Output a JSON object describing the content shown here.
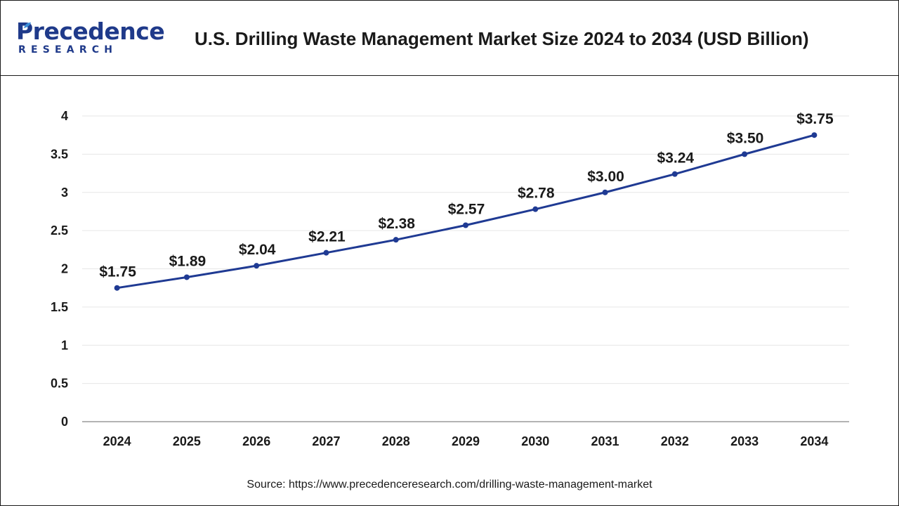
{
  "header": {
    "logo_name": "Precedence",
    "logo_sub": "RESEARCH",
    "title": "U.S. Drilling Waste Management Market Size 2024 to 2034 (USD Billion)"
  },
  "source": "Source: https://www.precedenceresearch.com/drilling-waste-management-market",
  "colors": {
    "line": "#1f3a93",
    "brand": "#1f3a8a",
    "grid": "#e6e6e6",
    "axis": "#9a9a9a"
  },
  "chart_data": {
    "type": "line",
    "categories": [
      "2024",
      "2025",
      "2026",
      "2027",
      "2028",
      "2029",
      "2030",
      "2031",
      "2032",
      "2033",
      "2034"
    ],
    "series": [
      {
        "values": [
          1.75,
          1.89,
          2.04,
          2.21,
          2.38,
          2.57,
          2.78,
          3.0,
          3.24,
          3.5,
          3.75
        ],
        "labels": [
          "$1.75",
          "$1.89",
          "$2.04",
          "$2.21",
          "$2.38",
          "$2.57",
          "$2.78",
          "$3.00",
          "$3.24",
          "$3.50",
          "$3.75"
        ]
      }
    ],
    "yticks": [
      "0",
      "0.5",
      "1",
      "1.5",
      "2",
      "2.5",
      "3",
      "3.5",
      "4"
    ],
    "ylim": [
      0,
      4
    ],
    "grid": true,
    "legend": "none"
  }
}
